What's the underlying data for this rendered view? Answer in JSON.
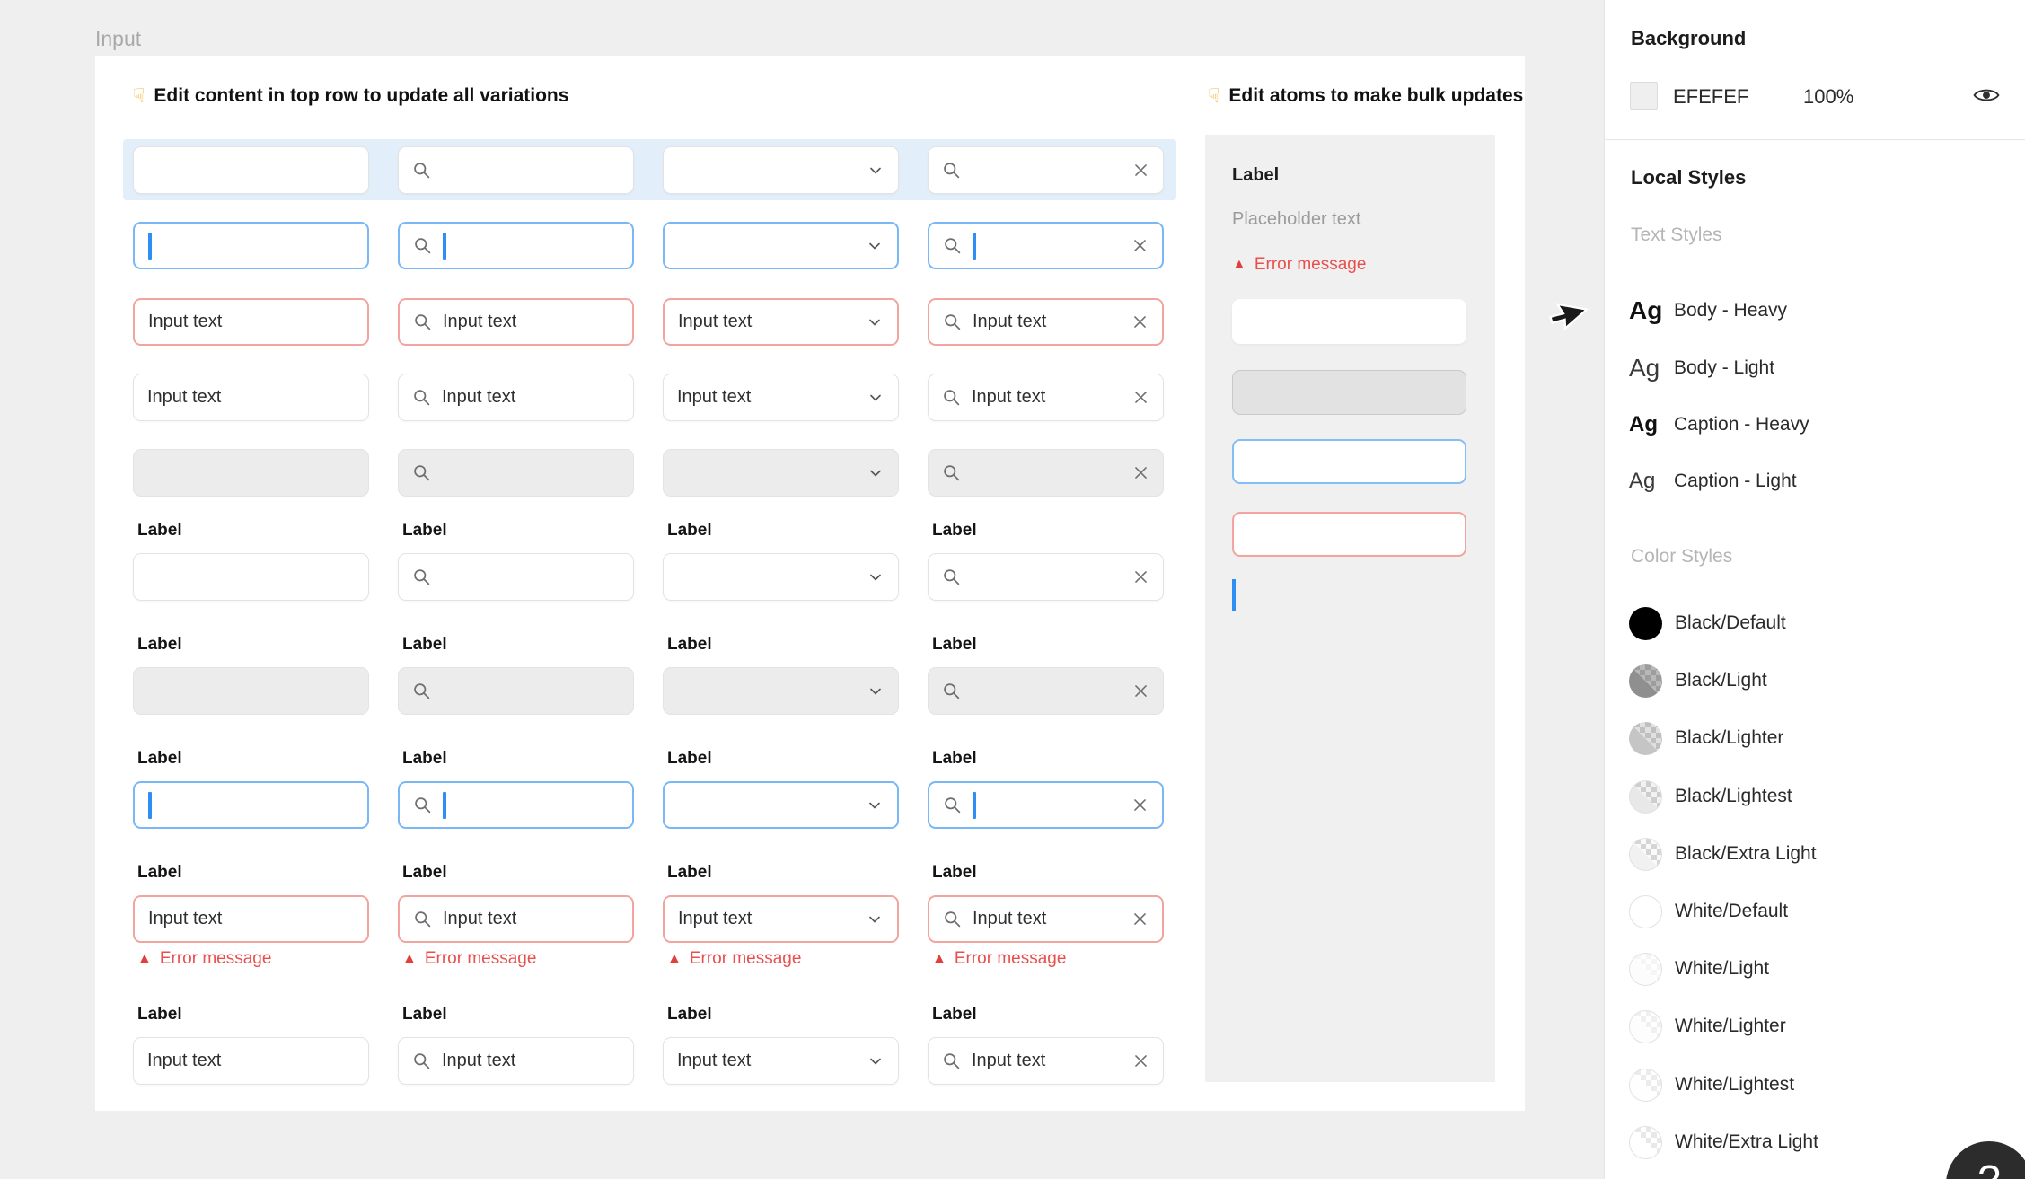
{
  "page": {
    "title": "Input",
    "background_hex": "#EFEFEF"
  },
  "canvas": {
    "hint": "Edit content in top row to update all variations",
    "hint_icon": "pointing-down-hand",
    "label_text": "Label",
    "input_value": "Input text",
    "error_message": "Error message",
    "columns": [
      "text",
      "search",
      "select",
      "search-clear"
    ],
    "rows": [
      {
        "state": "default",
        "labeled": false,
        "filled": false,
        "caret": false,
        "selected": true,
        "error_row": false
      },
      {
        "state": "focus",
        "labeled": false,
        "filled": false,
        "caret": true,
        "selected": false,
        "error_row": false
      },
      {
        "state": "error",
        "labeled": false,
        "filled": true,
        "caret": false,
        "selected": false,
        "error_row": false
      },
      {
        "state": "default",
        "labeled": false,
        "filled": true,
        "caret": false,
        "selected": false,
        "error_row": false
      },
      {
        "state": "disabled",
        "labeled": false,
        "filled": false,
        "caret": false,
        "selected": false,
        "error_row": false
      },
      {
        "state": "default",
        "labeled": true,
        "filled": false,
        "caret": false,
        "selected": false,
        "error_row": false
      },
      {
        "state": "disabled",
        "labeled": true,
        "filled": false,
        "caret": false,
        "selected": false,
        "error_row": false
      },
      {
        "state": "focus",
        "labeled": true,
        "filled": false,
        "caret": true,
        "selected": false,
        "error_row": false
      },
      {
        "state": "error",
        "labeled": true,
        "filled": true,
        "caret": false,
        "selected": false,
        "error_row": true
      },
      {
        "state": "default",
        "labeled": true,
        "filled": true,
        "caret": false,
        "selected": false,
        "error_row": false
      }
    ]
  },
  "atoms": {
    "hint": "Edit atoms to make bulk updates",
    "hint_icon": "pointing-down-hand",
    "label": "Label",
    "placeholder": "Placeholder text",
    "error_message": "Error message",
    "boxes": [
      "default",
      "disabled",
      "focus",
      "error"
    ],
    "caret_color": "#2f8ef4"
  },
  "sidebar": {
    "background": {
      "title": "Background",
      "hex": "EFEFEF",
      "opacity": "100%",
      "eye_icon": "eye"
    },
    "local_styles_title": "Local Styles",
    "text_styles_title": "Text Styles",
    "text_styles": [
      {
        "sample": "Ag",
        "label": "Body - Heavy",
        "weight": "heavy",
        "size": "large"
      },
      {
        "sample": "Ag",
        "label": "Body - Light",
        "weight": "light",
        "size": "large"
      },
      {
        "sample": "Ag",
        "label": "Caption - Heavy",
        "weight": "heavy",
        "size": "small"
      },
      {
        "sample": "Ag",
        "label": "Caption - Light",
        "weight": "light",
        "size": "small"
      }
    ],
    "color_styles_title": "Color Styles",
    "color_styles": [
      {
        "label": "Black/Default",
        "solid": "#000000",
        "checker": false,
        "tint": "rgba(0,0,0,1)",
        "ring": false
      },
      {
        "label": "Black/Light",
        "solid": "#8f8f8f",
        "checker": true,
        "tint": "rgba(0,0,0,0.28)",
        "ring": false
      },
      {
        "label": "Black/Lighter",
        "solid": "#c5c5c5",
        "checker": true,
        "tint": "rgba(0,0,0,0.12)",
        "ring": false
      },
      {
        "label": "Black/Lightest",
        "solid": "#e8e8e8",
        "checker": true,
        "tint": "rgba(0,0,0,0.05)",
        "ring": true
      },
      {
        "label": "Black/Extra Light",
        "solid": "#f1f1f1",
        "checker": true,
        "tint": "rgba(0,0,0,0.02)",
        "ring": true
      },
      {
        "label": "White/Default",
        "solid": "#ffffff",
        "checker": false,
        "tint": "rgba(255,255,255,1)",
        "ring": true
      },
      {
        "label": "White/Light",
        "solid": "#fcfcfc",
        "checker": true,
        "tint": "rgba(255,255,255,0.75)",
        "ring": true
      },
      {
        "label": "White/Lighter",
        "solid": "#fdfdfd",
        "checker": true,
        "tint": "rgba(255,255,255,0.6)",
        "ring": true
      },
      {
        "label": "White/Lightest",
        "solid": "#fefefe",
        "checker": true,
        "tint": "rgba(255,255,255,0.5)",
        "ring": true
      },
      {
        "label": "White/Extra Light",
        "solid": "#ffffff",
        "checker": true,
        "tint": "rgba(255,255,255,0.4)",
        "ring": true
      }
    ]
  },
  "help_button": {
    "label": "?"
  },
  "cursor_icon": "arrow-pointer",
  "colors": {
    "selection_highlight": "#e3eefb",
    "focus_border": "#79b7f6",
    "error_border": "#f2a49e",
    "error_text": "#e8504e",
    "caret": "#2f8ef4",
    "disabled_fill": "#ececec",
    "default_border": "#e3e3e3"
  }
}
